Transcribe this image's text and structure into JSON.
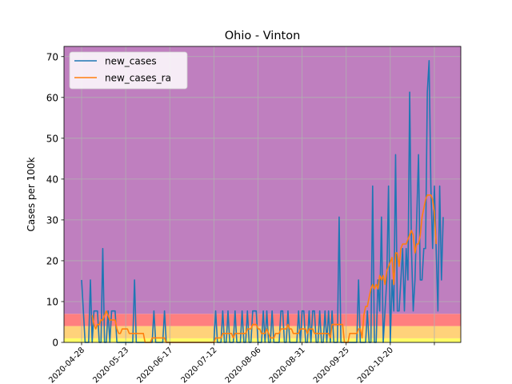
{
  "chart_data": {
    "type": "line",
    "title": "Ohio - Vinton",
    "xlabel": "",
    "ylabel": "Cases per 100k",
    "ylim": [
      0,
      72.5
    ],
    "y_ticks": [
      0,
      10,
      20,
      30,
      40,
      50,
      60,
      70
    ],
    "x_tick_labels": [
      "2020-04-28",
      "2020-05-23",
      "2020-06-17",
      "2020-07-12",
      "2020-08-06",
      "2020-08-31",
      "2020-09-25",
      "2020-10-20"
    ],
    "grid": true,
    "legend_position": "top-left",
    "bands": [
      {
        "from": 0,
        "to": 1,
        "color": "#ffff66"
      },
      {
        "from": 1,
        "to": 4,
        "color": "#ffd27a"
      },
      {
        "from": 4,
        "to": 7,
        "color": "#ff7f7f"
      },
      {
        "from": 7,
        "to": 72.5,
        "color": "#bf7fbf"
      }
    ],
    "series": [
      {
        "name": "new_cases",
        "color": "#1f77b4",
        "values": [
          15.3,
          7.7,
          0,
          0,
          0,
          15.3,
          0,
          7.7,
          7.7,
          7.7,
          0,
          0,
          23,
          0,
          0,
          7.7,
          0,
          7.7,
          7.7,
          7.7,
          0,
          0,
          0,
          0,
          0,
          0,
          0,
          0,
          0,
          0,
          15.3,
          0,
          0,
          0,
          0,
          0,
          0,
          0,
          0,
          0,
          0,
          7.7,
          0,
          0,
          0,
          0,
          0,
          7.7,
          0,
          0,
          0,
          0,
          0,
          0,
          0,
          0,
          0,
          0,
          0,
          0,
          0,
          0,
          0,
          0,
          0,
          0,
          0,
          0,
          0,
          0,
          0,
          0,
          0,
          0,
          0,
          0,
          7.7,
          0,
          0,
          0,
          7.7,
          0,
          0,
          7.7,
          0,
          0,
          0,
          7.7,
          0,
          0,
          0,
          7.7,
          0,
          0,
          7.7,
          0,
          0,
          7.7,
          7.7,
          7.7,
          0,
          0,
          0,
          7.7,
          0,
          7.7,
          0,
          0,
          7.7,
          0,
          0,
          0,
          0,
          7.7,
          7.7,
          0,
          0,
          7.7,
          0,
          0,
          0,
          0,
          0,
          7.7,
          0,
          7.7,
          7.7,
          0,
          0,
          7.7,
          0,
          7.7,
          7.7,
          0,
          0,
          7.7,
          0,
          0,
          7.7,
          0,
          7.7,
          0,
          7.7,
          0,
          0,
          0,
          30.7,
          0,
          0,
          0,
          0,
          0,
          0,
          0,
          0,
          0,
          0,
          15.3,
          0,
          0,
          0,
          0,
          7.7,
          0,
          0,
          38.3,
          0,
          0,
          15.3,
          7.7,
          30.7,
          0,
          7.7,
          15.3,
          38.3,
          0,
          15.3,
          7.7,
          46,
          7.7,
          7.7,
          15.3,
          23,
          7.7,
          23,
          15.3,
          61.3,
          23,
          7.7,
          15.3,
          30.7,
          46,
          15.3,
          15.3,
          23,
          23,
          61.3,
          69,
          38.3,
          23,
          38.3,
          23,
          7.7,
          38.3,
          15.3,
          30.7
        ]
      },
      {
        "name": "new_cases_ra",
        "color": "#ff7f0e",
        "values": [
          null,
          null,
          null,
          null,
          null,
          null,
          6.6,
          4.4,
          3.3,
          4.4,
          4.4,
          5.5,
          5.5,
          6.6,
          7.7,
          6.6,
          5.5,
          5.5,
          5.5,
          5.5,
          3.3,
          2.2,
          2.2,
          3.3,
          3.3,
          3.3,
          3.3,
          2.2,
          2.2,
          2.2,
          2.2,
          2.2,
          2.2,
          2.2,
          2.2,
          2.2,
          0,
          0,
          0,
          0,
          1.1,
          1.1,
          1.1,
          1.1,
          1.1,
          1.1,
          1.1,
          1.1,
          0,
          0,
          0,
          0,
          0,
          0,
          0,
          0,
          0,
          0,
          0,
          0,
          0,
          0,
          0,
          0,
          0,
          0,
          0,
          0,
          0,
          0,
          0,
          0,
          0,
          0,
          0,
          0,
          1.1,
          1.1,
          1.1,
          1.1,
          2.2,
          2.2,
          2.2,
          2.2,
          2.2,
          2.2,
          1.1,
          2.2,
          2.2,
          2.2,
          2.2,
          2.2,
          2.2,
          2.2,
          3.3,
          3.3,
          3.3,
          4.4,
          4.4,
          4.4,
          3.3,
          3.3,
          2.2,
          2.2,
          2.2,
          3.3,
          2.2,
          1.1,
          1.1,
          1.1,
          2.2,
          2.2,
          2.2,
          3.3,
          3.3,
          3.3,
          3.3,
          4.4,
          3.3,
          3.3,
          2.2,
          2.2,
          2.2,
          2.2,
          3.3,
          3.3,
          3.3,
          3.3,
          2.2,
          3.3,
          3.3,
          3.3,
          2.2,
          2.2,
          2.2,
          2.2,
          2.2,
          2.2,
          2.2,
          2.2,
          2.2,
          1.1,
          4.4,
          4.4,
          4.4,
          4.4,
          4.4,
          4.4,
          4.4,
          0,
          0,
          0,
          2.2,
          2.2,
          2.2,
          2.2,
          2.2,
          3.3,
          3.3,
          1.1,
          6.6,
          8.8,
          8.8,
          11,
          13.1,
          14.2,
          13.1,
          14.2,
          13.1,
          16.4,
          15.3,
          16.4,
          14.2,
          17.5,
          18.6,
          19.7,
          20.8,
          14.2,
          21.9,
          21.9,
          18.6,
          23,
          24.1,
          24.1,
          24.1,
          25.2,
          26.3,
          27.4,
          26.3,
          21.9,
          24.1,
          24.1,
          26.3,
          30.7,
          32.8,
          35,
          36.1,
          36.1,
          36.1,
          35,
          31.8,
          24.1
        ]
      }
    ]
  }
}
